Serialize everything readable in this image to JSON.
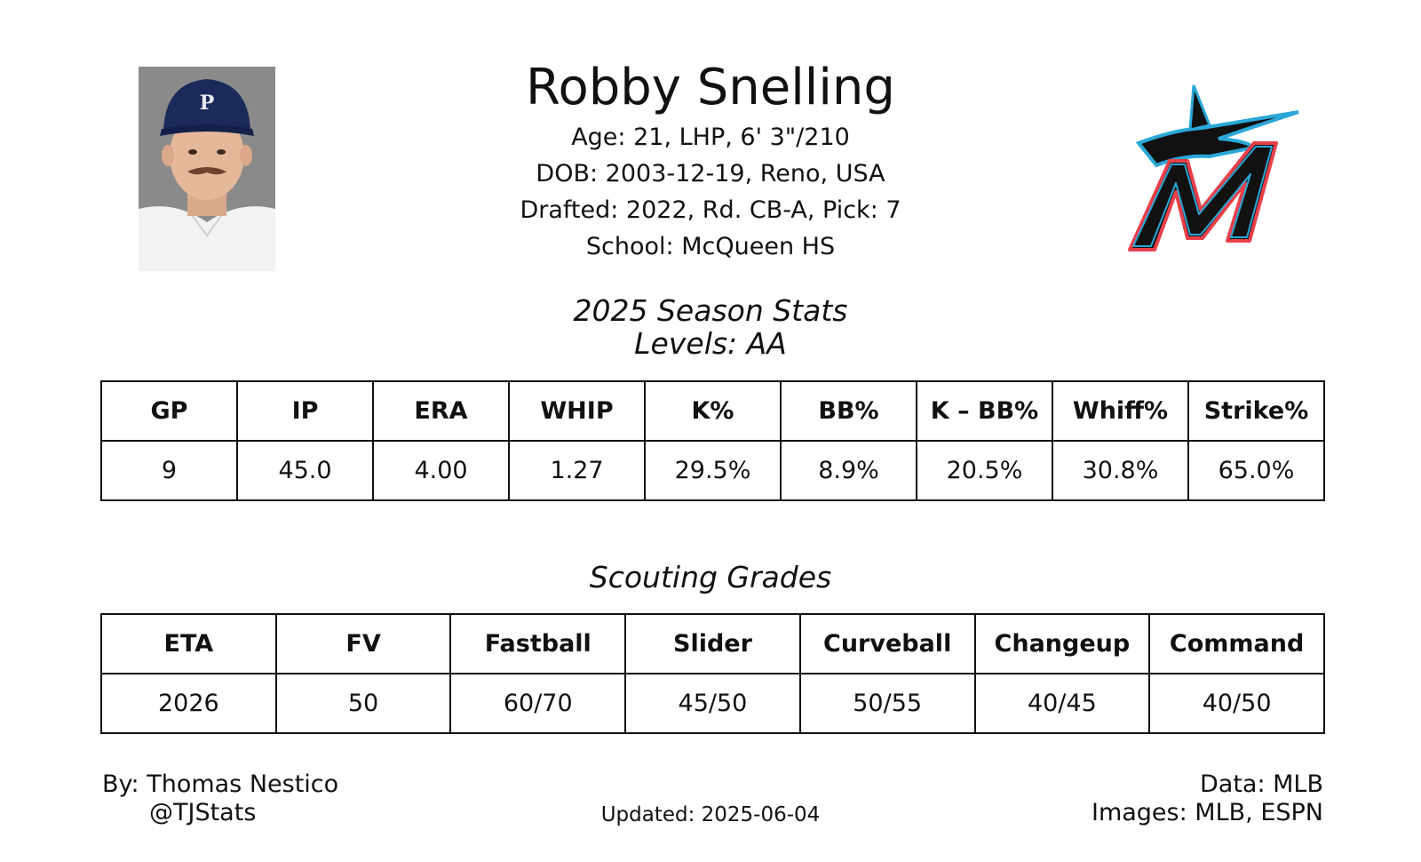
{
  "player": {
    "name": "Robby Snelling",
    "age_line": "Age: 21, LHP, 6' 3\"/210",
    "dob_line": "DOB: 2003-12-19, Reno, USA",
    "draft_line": "Drafted: 2022, Rd. CB-A, Pick: 7",
    "school_line": "School: McQueen HS"
  },
  "season": {
    "title": "2025 Season Stats",
    "levels": "Levels: AA",
    "headers": [
      "GP",
      "IP",
      "ERA",
      "WHIP",
      "K%",
      "BB%",
      "K – BB%",
      "Whiff%",
      "Strike%"
    ],
    "values": [
      "9",
      "45.0",
      "4.00",
      "1.27",
      "29.5%",
      "8.9%",
      "20.5%",
      "30.8%",
      "65.0%"
    ]
  },
  "scouting": {
    "title": "Scouting Grades",
    "headers": [
      "ETA",
      "FV",
      "Fastball",
      "Slider",
      "Curveball",
      "Changeup",
      "Command"
    ],
    "values": [
      "2026",
      "50",
      "60/70",
      "45/50",
      "50/55",
      "40/45",
      "40/50"
    ]
  },
  "footer": {
    "by": "By: Thomas Nestico",
    "handle": "@TJStats",
    "updated": "Updated: 2025-06-04",
    "data_source": "Data: MLB",
    "image_source": "Images: MLB, ESPN"
  },
  "colors": {
    "logo_black": "#111111",
    "logo_blue": "#2aa8d8",
    "logo_red": "#e8404a",
    "photo_bg": "#8a8a8a",
    "cap_navy": "#1b2a5a"
  },
  "icons": {
    "headshot": "player-headshot-photo",
    "logo": "miami-marlins-logo"
  }
}
